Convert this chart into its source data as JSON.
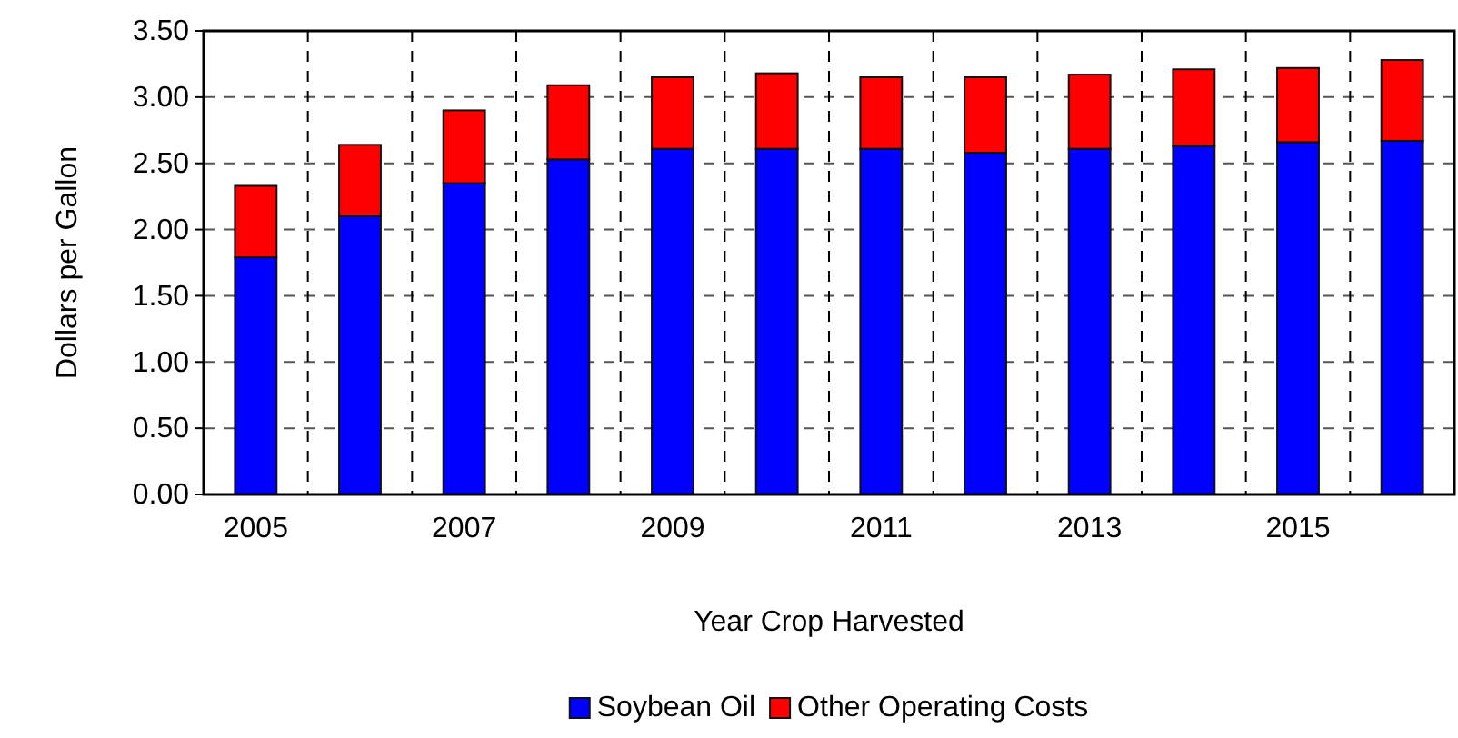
{
  "chart_data": {
    "type": "bar",
    "stacked": true,
    "xlabel": "Year Crop Harvested",
    "ylabel": "Dollars per Gallon",
    "categories": [
      "2005",
      null,
      "2007",
      null,
      "2009",
      null,
      "2011",
      null,
      "2013",
      null,
      "2015",
      null
    ],
    "series": [
      {
        "name": "Soybean Oil",
        "color": "#0000ff",
        "values": [
          1.79,
          2.1,
          2.35,
          2.53,
          2.61,
          2.61,
          2.61,
          2.58,
          2.61,
          2.63,
          2.66,
          2.67
        ]
      },
      {
        "name": "Other Operating Costs",
        "color": "#ff0000",
        "values": [
          0.54,
          0.54,
          0.55,
          0.56,
          0.54,
          0.57,
          0.54,
          0.57,
          0.56,
          0.58,
          0.56,
          0.61
        ]
      }
    ],
    "ylim": [
      0,
      3.5
    ],
    "yticks": [
      {
        "value": 0,
        "label": "0.00"
      },
      {
        "value": 0.5,
        "label": "0.50"
      },
      {
        "value": 1,
        "label": "1.00"
      },
      {
        "value": 1.5,
        "label": "1.50"
      },
      {
        "value": 2,
        "label": "2.00"
      },
      {
        "value": 2.5,
        "label": "2.50"
      },
      {
        "value": 3,
        "label": "3.00"
      },
      {
        "value": 3.5,
        "label": "3.50"
      }
    ],
    "grid": true,
    "legend": "bottom"
  }
}
